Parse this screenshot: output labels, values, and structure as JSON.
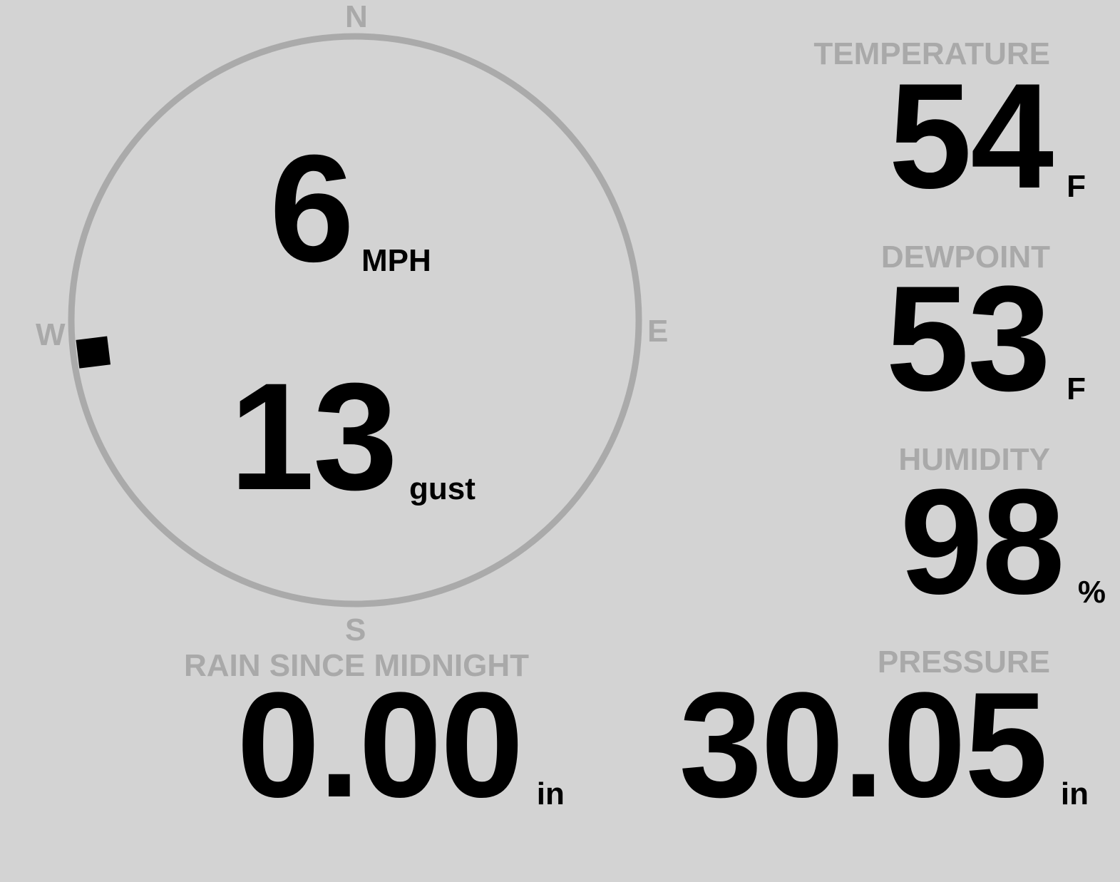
{
  "compass": {
    "north": "N",
    "east": "E",
    "south": "S",
    "west": "W",
    "wind_direction_deg": 263,
    "ring_color": "#aaaaaa"
  },
  "wind": {
    "speed": "6",
    "speed_unit": "MPH",
    "gust": "13",
    "gust_unit": "gust"
  },
  "temperature": {
    "label": "TEMPERATURE",
    "value": "54",
    "unit": "F"
  },
  "dewpoint": {
    "label": "DEWPOINT",
    "value": "53",
    "unit": "F"
  },
  "humidity": {
    "label": "HUMIDITY",
    "value": "98",
    "unit": "%"
  },
  "rain": {
    "label": "RAIN SINCE MIDNIGHT",
    "value": "0.00",
    "unit": "in"
  },
  "pressure": {
    "label": "PRESSURE",
    "value": "30.05",
    "unit": "in"
  },
  "colors": {
    "background": "#d3d3d3",
    "label": "#a9a9a9",
    "value": "#000000"
  }
}
